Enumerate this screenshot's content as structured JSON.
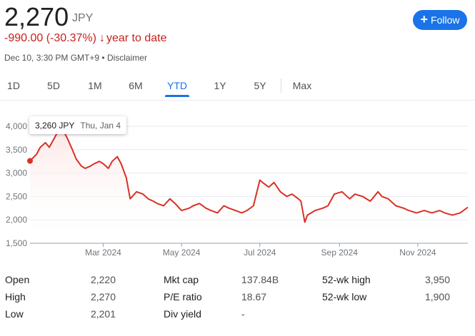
{
  "quote": {
    "price": "2,270",
    "currency": "JPY",
    "change": "-990.00 (-30.37%)",
    "change_arrow": "↓",
    "period_label": "year to date",
    "timestamp": "Dec 10, 3:30 PM GMT+9",
    "separator": " • ",
    "disclaimer": "Disclaimer"
  },
  "follow": {
    "icon": "plus-icon",
    "label": "Follow"
  },
  "ranges": [
    "1D",
    "5D",
    "1M",
    "6M",
    "YTD",
    "1Y",
    "5Y",
    "Max"
  ],
  "active_range": "YTD",
  "tooltip": {
    "value": "3,260 JPY",
    "date": "Thu, Jan 4"
  },
  "colors": {
    "line": "#d93025",
    "accent": "#1a73e8",
    "negative": "#c5221f"
  },
  "chart_data": {
    "type": "area",
    "y_ticks": [
      "4,000",
      "3,500",
      "3,000",
      "2,500",
      "2,000",
      "1,500"
    ],
    "ylim": [
      1500,
      4000
    ],
    "x_ticks": [
      "Mar 2024",
      "May 2024",
      "Jul 2024",
      "Sep 2024",
      "Nov 2024"
    ],
    "x_tick_dates": [
      "2024-03-01",
      "2024-05-01",
      "2024-07-01",
      "2024-09-01",
      "2024-11-01"
    ],
    "xlim": [
      "2024-01-04",
      "2024-12-10"
    ],
    "grid": true,
    "series": [
      {
        "dates": [
          "2024-01-04",
          "2024-01-09",
          "2024-01-12",
          "2024-01-16",
          "2024-01-19",
          "2024-01-23",
          "2024-01-26",
          "2024-01-31",
          "2024-02-02",
          "2024-02-06",
          "2024-02-09",
          "2024-02-13",
          "2024-02-16",
          "2024-02-20",
          "2024-02-23",
          "2024-02-27",
          "2024-03-01",
          "2024-03-05",
          "2024-03-08",
          "2024-03-12",
          "2024-03-15",
          "2024-03-19",
          "2024-03-22",
          "2024-03-27",
          "2024-04-01",
          "2024-04-05",
          "2024-04-09",
          "2024-04-12",
          "2024-04-17",
          "2024-04-22",
          "2024-04-26",
          "2024-05-01",
          "2024-05-07",
          "2024-05-10",
          "2024-05-15",
          "2024-05-20",
          "2024-05-24",
          "2024-05-29",
          "2024-06-03",
          "2024-06-07",
          "2024-06-12",
          "2024-06-17",
          "2024-06-21",
          "2024-06-26",
          "2024-07-01",
          "2024-07-03",
          "2024-07-08",
          "2024-07-12",
          "2024-07-17",
          "2024-07-22",
          "2024-07-26",
          "2024-07-31",
          "2024-08-02",
          "2024-08-05",
          "2024-08-07",
          "2024-08-13",
          "2024-08-19",
          "2024-08-23",
          "2024-08-28",
          "2024-09-03",
          "2024-09-09",
          "2024-09-13",
          "2024-09-19",
          "2024-09-25",
          "2024-10-01",
          "2024-10-04",
          "2024-10-09",
          "2024-10-15",
          "2024-10-21",
          "2024-10-25",
          "2024-10-31",
          "2024-11-06",
          "2024-11-12",
          "2024-11-18",
          "2024-11-22",
          "2024-11-28",
          "2024-12-04",
          "2024-12-10"
        ],
        "values": [
          3260,
          3400,
          3550,
          3650,
          3550,
          3750,
          3900,
          3850,
          3750,
          3500,
          3300,
          3150,
          3100,
          3150,
          3200,
          3250,
          3200,
          3100,
          3250,
          3350,
          3200,
          2900,
          2450,
          2600,
          2550,
          2450,
          2400,
          2350,
          2300,
          2450,
          2350,
          2200,
          2250,
          2300,
          2350,
          2250,
          2200,
          2150,
          2300,
          2250,
          2200,
          2150,
          2200,
          2300,
          2850,
          2800,
          2700,
          2800,
          2600,
          2500,
          2550,
          2450,
          2400,
          1950,
          2100,
          2200,
          2250,
          2300,
          2550,
          2600,
          2450,
          2550,
          2500,
          2400,
          2600,
          2500,
          2450,
          2300,
          2250,
          2200,
          2150,
          2200,
          2150,
          2200,
          2150,
          2100,
          2150,
          2270
        ]
      }
    ]
  },
  "stats": [
    {
      "label": "Open",
      "value": "2,220"
    },
    {
      "label": "High",
      "value": "2,270"
    },
    {
      "label": "Low",
      "value": "2,201"
    },
    {
      "label": "Mkt cap",
      "value": "137.84B"
    },
    {
      "label": "P/E ratio",
      "value": "18.67"
    },
    {
      "label": "Div yield",
      "value": "-"
    },
    {
      "label": "52-wk high",
      "value": "3,950"
    },
    {
      "label": "52-wk low",
      "value": "1,900"
    }
  ]
}
